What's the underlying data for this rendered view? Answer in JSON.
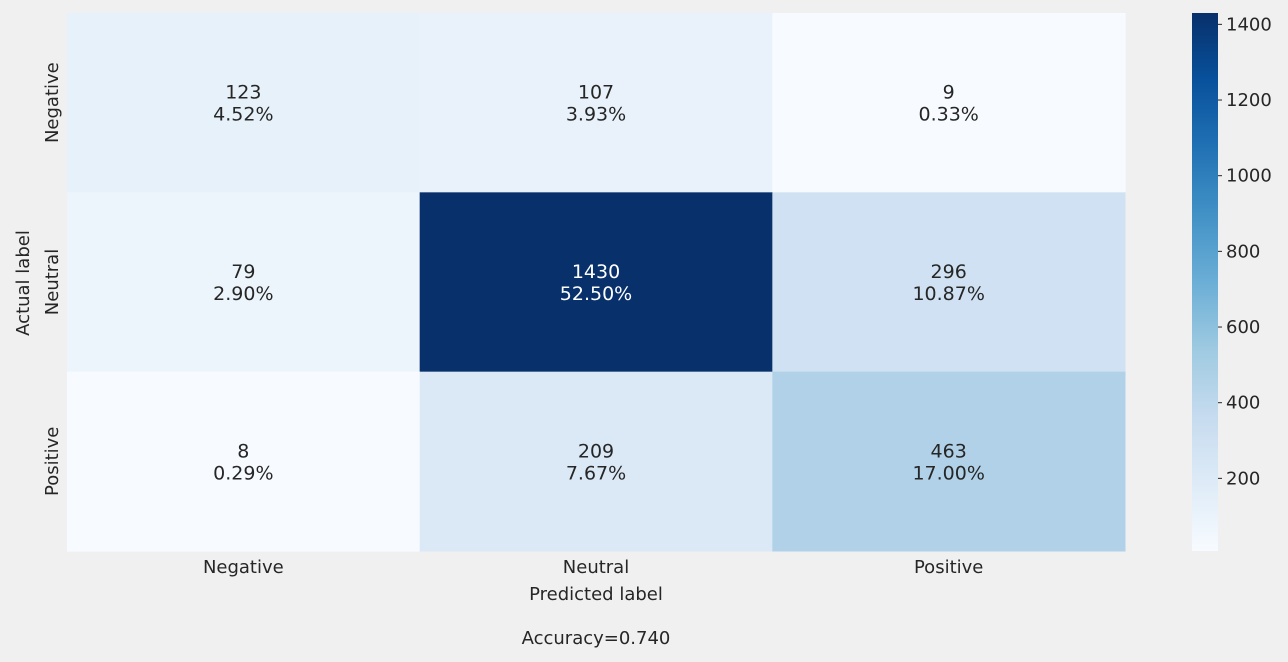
{
  "chart_data": {
    "type": "heatmap",
    "x_categories": [
      "Negative",
      "Neutral",
      "Positive"
    ],
    "y_categories": [
      "Negative",
      "Neutral",
      "Positive"
    ],
    "values": [
      [
        123,
        107,
        9
      ],
      [
        79,
        1430,
        296
      ],
      [
        8,
        209,
        463
      ]
    ],
    "percent_labels": [
      [
        "4.52%",
        "3.93%",
        "0.33%"
      ],
      [
        "2.90%",
        "52.50%",
        "10.87%"
      ],
      [
        "0.29%",
        "7.67%",
        "17.00%"
      ]
    ],
    "xlabel": "Predicted label",
    "ylabel": "Actual label",
    "footer_text": "Accuracy=0.740",
    "colorbar": {
      "ticks": [
        200,
        400,
        600,
        800,
        1000,
        1200,
        1400
      ],
      "vmin": 8,
      "vmax": 1430,
      "colormap": "Blues"
    },
    "colors": {
      "background": "#f0f0f0",
      "low": "#f7fbff",
      "high": "#08306b",
      "text_dark": "#262626",
      "text_light": "#ffffff"
    }
  }
}
